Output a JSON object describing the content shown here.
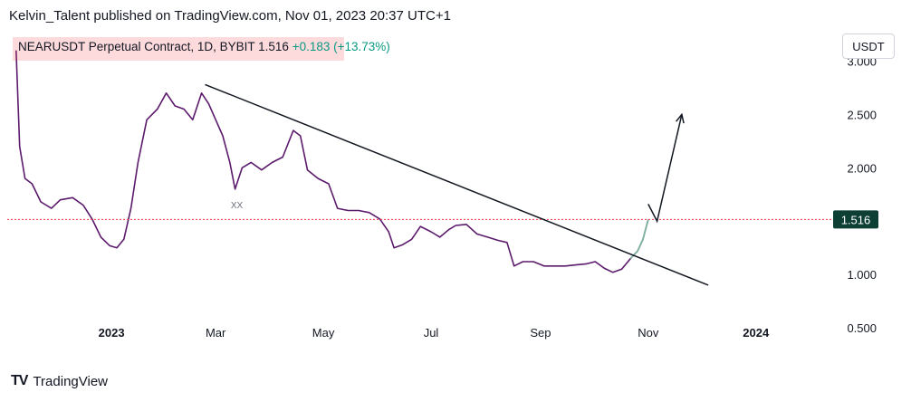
{
  "header": {
    "text": "Kelvin_Talent published on TradingView.com, Nov 01, 2023 20:37 UTC+1"
  },
  "legend": {
    "symbol": "NEARUSDT Perpetual Contract, 1D, BYBIT",
    "price": "1.516",
    "change": "+0.183 (+13.73%)"
  },
  "currency_button": "USDT",
  "footer": {
    "brand": "TradingView"
  },
  "colors": {
    "up": "#089981",
    "down": "#5b1a6b",
    "level": "#f23645",
    "trend": "#131722",
    "text": "#131722"
  },
  "chart_data": {
    "type": "line",
    "title": "NEARUSDT Perpetual Contract, 1D, BYBIT",
    "xlabel": "",
    "ylabel": "",
    "ylim": [
      0.45,
      3.25
    ],
    "xlim": [
      "2022-11-05",
      "2024-02-05"
    ],
    "y_ticks": [
      3.0,
      2.5,
      2.0,
      1.5,
      1.0,
      0.5
    ],
    "y_tick_labels": [
      "3.000",
      "2.500",
      "2.000",
      "",
      "1.000",
      "0.500"
    ],
    "x_ticks": [
      {
        "date": "2023-01-01",
        "label": "2023",
        "bold": true
      },
      {
        "date": "2023-03-01",
        "label": "Mar",
        "bold": false
      },
      {
        "date": "2023-05-01",
        "label": "May",
        "bold": false
      },
      {
        "date": "2023-07-01",
        "label": "Jul",
        "bold": false
      },
      {
        "date": "2023-09-01",
        "label": "Sep",
        "bold": false
      },
      {
        "date": "2023-11-01",
        "label": "Nov",
        "bold": false
      },
      {
        "date": "2024-01-01",
        "label": "2024",
        "bold": true
      }
    ],
    "series": [
      {
        "points": [
          [
            "2022-11-08",
            3.1
          ],
          [
            "2022-11-10",
            2.2
          ],
          [
            "2022-11-13",
            1.9
          ],
          [
            "2022-11-17",
            1.85
          ],
          [
            "2022-11-22",
            1.68
          ],
          [
            "2022-11-28",
            1.62
          ],
          [
            "2022-12-03",
            1.7
          ],
          [
            "2022-12-10",
            1.72
          ],
          [
            "2022-12-16",
            1.65
          ],
          [
            "2022-12-21",
            1.52
          ],
          [
            "2022-12-26",
            1.35
          ],
          [
            "2022-12-31",
            1.27
          ],
          [
            "2023-01-04",
            1.25
          ],
          [
            "2023-01-08",
            1.33
          ],
          [
            "2023-01-12",
            1.62
          ],
          [
            "2023-01-16",
            2.05
          ],
          [
            "2023-01-21",
            2.45
          ],
          [
            "2023-01-27",
            2.55
          ],
          [
            "2023-02-01",
            2.7
          ],
          [
            "2023-02-06",
            2.58
          ],
          [
            "2023-02-11",
            2.55
          ],
          [
            "2023-02-16",
            2.45
          ],
          [
            "2023-02-21",
            2.7
          ],
          [
            "2023-02-25",
            2.6
          ],
          [
            "2023-03-01",
            2.45
          ],
          [
            "2023-03-05",
            2.3
          ],
          [
            "2023-03-09",
            2.05
          ],
          [
            "2023-03-12",
            1.8
          ],
          [
            "2023-03-16",
            2.0
          ],
          [
            "2023-03-21",
            2.05
          ],
          [
            "2023-03-27",
            1.98
          ],
          [
            "2023-04-02",
            2.05
          ],
          [
            "2023-04-08",
            2.1
          ],
          [
            "2023-04-14",
            2.35
          ],
          [
            "2023-04-18",
            2.3
          ],
          [
            "2023-04-22",
            1.98
          ],
          [
            "2023-04-28",
            1.9
          ],
          [
            "2023-05-04",
            1.85
          ],
          [
            "2023-05-09",
            1.62
          ],
          [
            "2023-05-15",
            1.6
          ],
          [
            "2023-05-21",
            1.6
          ],
          [
            "2023-05-27",
            1.58
          ],
          [
            "2023-06-02",
            1.52
          ],
          [
            "2023-06-07",
            1.4
          ],
          [
            "2023-06-10",
            1.25
          ],
          [
            "2023-06-15",
            1.28
          ],
          [
            "2023-06-20",
            1.33
          ],
          [
            "2023-06-25",
            1.45
          ],
          [
            "2023-07-01",
            1.4
          ],
          [
            "2023-07-06",
            1.35
          ],
          [
            "2023-07-11",
            1.42
          ],
          [
            "2023-07-15",
            1.46
          ],
          [
            "2023-07-21",
            1.47
          ],
          [
            "2023-07-27",
            1.38
          ],
          [
            "2023-08-02",
            1.35
          ],
          [
            "2023-08-08",
            1.32
          ],
          [
            "2023-08-13",
            1.3
          ],
          [
            "2023-08-17",
            1.08
          ],
          [
            "2023-08-22",
            1.12
          ],
          [
            "2023-08-28",
            1.12
          ],
          [
            "2023-09-03",
            1.08
          ],
          [
            "2023-09-09",
            1.08
          ],
          [
            "2023-09-15",
            1.08
          ],
          [
            "2023-09-21",
            1.09
          ],
          [
            "2023-09-27",
            1.1
          ],
          [
            "2023-10-02",
            1.12
          ],
          [
            "2023-10-07",
            1.06
          ],
          [
            "2023-10-12",
            1.02
          ],
          [
            "2023-10-17",
            1.05
          ],
          [
            "2023-10-22",
            1.15
          ],
          [
            "2023-10-26",
            1.22
          ],
          [
            "2023-10-29",
            1.33
          ],
          [
            "2023-11-01",
            1.516
          ]
        ]
      }
    ],
    "annotations": [
      {
        "type": "horizontal_level",
        "y": 1.516,
        "label": "1.516"
      },
      {
        "type": "trendline",
        "from": [
          "2023-02-23",
          2.78
        ],
        "to": [
          "2023-12-05",
          0.9
        ]
      },
      {
        "type": "projection_arrow",
        "path": [
          [
            "2023-11-01",
            1.66
          ],
          [
            "2023-11-06",
            1.5
          ],
          [
            "2023-11-20",
            2.5
          ]
        ]
      },
      {
        "type": "text",
        "text": "XX",
        "at": [
          "2023-03-13",
          1.62
        ]
      }
    ],
    "grid": false,
    "legend": "top-left"
  }
}
